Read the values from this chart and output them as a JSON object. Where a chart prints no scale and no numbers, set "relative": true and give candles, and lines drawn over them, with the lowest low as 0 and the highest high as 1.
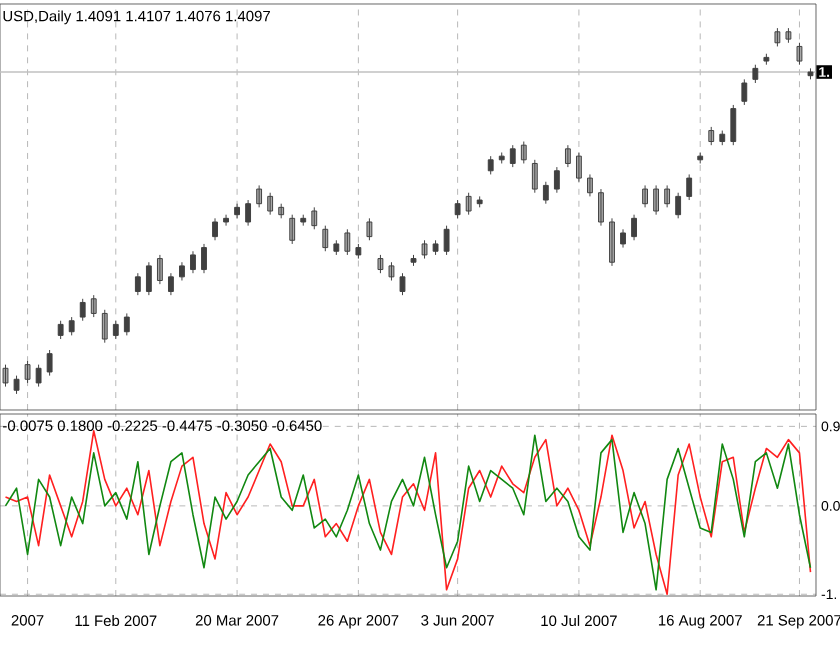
{
  "chart_data": [
    {
      "type": "candlestick",
      "title": "USD,Daily 1.4091 1.4107 1.4076 1.4097",
      "relative": true,
      "color": "#404040",
      "grid": "x",
      "categories": [
        null,
        null,
        null,
        null,
        null,
        null,
        null,
        null,
        null,
        null,
        null,
        null,
        null,
        null,
        null,
        null,
        null,
        null,
        null,
        null,
        null,
        null,
        null,
        null,
        null,
        null,
        null,
        null,
        null,
        null,
        null,
        null,
        null,
        null,
        null,
        null,
        null,
        null,
        null,
        null,
        null,
        null,
        null,
        null,
        null,
        null,
        null,
        null,
        null,
        null,
        null,
        null,
        null,
        null,
        null,
        null,
        null,
        null,
        null,
        null,
        null,
        null,
        null,
        null,
        null,
        null,
        null,
        null,
        null,
        null,
        null,
        null,
        null,
        null
      ],
      "ohlc": [
        [
          0.07,
          0.08,
          0.02,
          0.03
        ],
        [
          0.01,
          0.05,
          0,
          0.04
        ],
        [
          0.08,
          0.09,
          0.03,
          0.04
        ],
        [
          0.03,
          0.08,
          0.02,
          0.07
        ],
        [
          0.06,
          0.12,
          0.05,
          0.11
        ],
        [
          0.16,
          0.2,
          0.15,
          0.19
        ],
        [
          0.17,
          0.21,
          0.16,
          0.2
        ],
        [
          0.21,
          0.26,
          0.2,
          0.25
        ],
        [
          0.26,
          0.27,
          0.21,
          0.22
        ],
        [
          0.22,
          0.23,
          0.14,
          0.15
        ],
        [
          0.16,
          0.2,
          0.15,
          0.19
        ],
        [
          0.17,
          0.22,
          0.16,
          0.21
        ],
        [
          0.28,
          0.33,
          0.27,
          0.32
        ],
        [
          0.28,
          0.36,
          0.27,
          0.35
        ],
        [
          0.37,
          0.38,
          0.3,
          0.31
        ],
        [
          0.28,
          0.33,
          0.27,
          0.32
        ],
        [
          0.32,
          0.36,
          0.31,
          0.35
        ],
        [
          0.34,
          0.39,
          0.33,
          0.38
        ],
        [
          0.34,
          0.41,
          0.33,
          0.4
        ],
        [
          0.43,
          0.48,
          0.42,
          0.47
        ],
        [
          0.47,
          0.49,
          0.46,
          0.48
        ],
        [
          0.49,
          0.52,
          0.48,
          0.51
        ],
        [
          0.47,
          0.53,
          0.46,
          0.52
        ],
        [
          0.56,
          0.57,
          0.51,
          0.52
        ],
        [
          0.54,
          0.55,
          0.49,
          0.5
        ],
        [
          0.51,
          0.52,
          0.48,
          0.49
        ],
        [
          0.48,
          0.49,
          0.41,
          0.42
        ],
        [
          0.47,
          0.49,
          0.46,
          0.48
        ],
        [
          0.5,
          0.51,
          0.45,
          0.46
        ],
        [
          0.45,
          0.46,
          0.39,
          0.4
        ],
        [
          0.39,
          0.42,
          0.38,
          0.41
        ],
        [
          0.44,
          0.45,
          0.38,
          0.39
        ],
        [
          0.38,
          0.41,
          0.37,
          0.4
        ],
        [
          0.47,
          0.48,
          0.42,
          0.43
        ],
        [
          0.37,
          0.38,
          0.33,
          0.34
        ],
        [
          0.35,
          0.36,
          0.31,
          0.32
        ],
        [
          0.28,
          0.33,
          0.27,
          0.32
        ],
        [
          0.36,
          0.38,
          0.35,
          0.37
        ],
        [
          0.41,
          0.42,
          0.37,
          0.38
        ],
        [
          0.39,
          0.42,
          0.38,
          0.41
        ],
        [
          0.39,
          0.46,
          0.38,
          0.45
        ],
        [
          0.49,
          0.53,
          0.48,
          0.52
        ],
        [
          0.54,
          0.55,
          0.49,
          0.5
        ],
        [
          0.52,
          0.54,
          0.51,
          0.53
        ],
        [
          0.61,
          0.65,
          0.6,
          0.64
        ],
        [
          0.64,
          0.66,
          0.63,
          0.65
        ],
        [
          0.63,
          0.68,
          0.62,
          0.67
        ],
        [
          0.68,
          0.69,
          0.63,
          0.64
        ],
        [
          0.63,
          0.64,
          0.55,
          0.56
        ],
        [
          0.53,
          0.58,
          0.52,
          0.57
        ],
        [
          0.56,
          0.62,
          0.55,
          0.61
        ],
        [
          0.67,
          0.68,
          0.62,
          0.63
        ],
        [
          0.65,
          0.66,
          0.58,
          0.59
        ],
        [
          0.59,
          0.6,
          0.54,
          0.55
        ],
        [
          0.55,
          0.56,
          0.46,
          0.47
        ],
        [
          0.47,
          0.48,
          0.35,
          0.36
        ],
        [
          0.41,
          0.45,
          0.4,
          0.44
        ],
        [
          0.43,
          0.49,
          0.42,
          0.48
        ],
        [
          0.56,
          0.57,
          0.51,
          0.52
        ],
        [
          0.56,
          0.57,
          0.49,
          0.5
        ],
        [
          0.56,
          0.57,
          0.51,
          0.52
        ],
        [
          0.49,
          0.55,
          0.48,
          0.54
        ],
        [
          0.54,
          0.6,
          0.53,
          0.59
        ],
        [
          0.64,
          0.66,
          0.63,
          0.65
        ],
        [
          0.72,
          0.73,
          0.68,
          0.69
        ],
        [
          0.69,
          0.72,
          0.68,
          0.71
        ],
        [
          0.69,
          0.79,
          0.68,
          0.78
        ],
        [
          0.8,
          0.86,
          0.79,
          0.85
        ],
        [
          0.86,
          0.9,
          0.85,
          0.89
        ],
        [
          0.91,
          0.93,
          0.9,
          0.92
        ],
        [
          0.99,
          1.0,
          0.95,
          0.96
        ],
        [
          0.99,
          1.0,
          0.96,
          0.97
        ],
        [
          0.95,
          0.96,
          0.9,
          0.91
        ],
        [
          0.87,
          0.89,
          0.86,
          0.88
        ]
      ],
      "ref_lines": [
        {
          "axis": "y",
          "value": 0.88,
          "label": "1.",
          "color": "#c0c0c0"
        }
      ]
    },
    {
      "type": "line",
      "title": "-0.0075 0.1800 -0.2225 -0.4475 -0.3050 -0.6450",
      "grid": true,
      "categories": [
        null,
        null,
        "2007",
        null,
        null,
        null,
        null,
        null,
        null,
        null,
        "11 Feb 2007",
        null,
        null,
        null,
        null,
        null,
        null,
        null,
        null,
        null,
        null,
        "20 Mar 2007",
        null,
        null,
        null,
        null,
        null,
        null,
        null,
        null,
        null,
        null,
        "26 Apr 2007",
        null,
        null,
        null,
        null,
        null,
        null,
        null,
        null,
        "3 Jun 2007",
        null,
        null,
        null,
        null,
        null,
        null,
        null,
        null,
        null,
        null,
        "10 Jul 2007",
        null,
        null,
        null,
        null,
        null,
        null,
        null,
        null,
        null,
        null,
        "16 Aug 2007",
        null,
        null,
        null,
        null,
        null,
        null,
        null,
        null,
        "21 Sep 2007",
        null
      ],
      "ylim": [
        -1.02,
        1.04
      ],
      "yticks": [
        {
          "value": 0.9,
          "label": "0.9"
        },
        {
          "value": 0,
          "label": "0.0"
        },
        {
          "value": -1,
          "label": "-1."
        }
      ],
      "series": [
        {
          "color": "#ff2020",
          "values": [
            0.1,
            0.05,
            0.1,
            -0.45,
            0.35,
            0.0,
            -0.35,
            0.05,
            0.85,
            0.3,
            0.0,
            0.2,
            -0.1,
            0.4,
            -0.45,
            0.05,
            0.45,
            0.55,
            -0.2,
            -0.6,
            0.15,
            -0.1,
            0.1,
            0.4,
            0.7,
            0.5,
            0.0,
            0.0,
            0.3,
            -0.35,
            -0.2,
            -0.4,
            0.0,
            0.3,
            -0.3,
            -0.55,
            0.1,
            0.25,
            -0.05,
            0.6,
            -0.95,
            -0.6,
            0.2,
            0.4,
            0.1,
            0.45,
            0.25,
            0.15,
            0.55,
            0.75,
            0.0,
            0.2,
            -0.05,
            -0.45,
            0.1,
            0.8,
            0.4,
            -0.25,
            0.05,
            -0.55,
            -1.0,
            0.35,
            0.7,
            0.1,
            -0.35,
            0.5,
            0.55,
            -0.3,
            0.2,
            0.65,
            0.55,
            0.75,
            0.6,
            -0.75
          ]
        },
        {
          "color": "#118811",
          "values": [
            0.0,
            0.2,
            -0.55,
            0.3,
            0.1,
            -0.45,
            0.1,
            -0.2,
            0.6,
            0.0,
            0.15,
            -0.15,
            0.5,
            -0.55,
            0.0,
            0.5,
            0.6,
            -0.1,
            -0.7,
            0.1,
            -0.15,
            0.05,
            0.35,
            0.5,
            0.65,
            0.1,
            -0.05,
            0.35,
            -0.25,
            -0.15,
            -0.35,
            -0.05,
            0.35,
            -0.2,
            -0.5,
            0.05,
            0.3,
            0.0,
            0.55,
            -0.1,
            -0.7,
            -0.4,
            0.45,
            0.05,
            0.4,
            0.3,
            0.2,
            -0.1,
            0.8,
            0.05,
            0.2,
            0.05,
            -0.35,
            -0.5,
            0.6,
            0.75,
            -0.3,
            0.15,
            -0.2,
            -0.95,
            0.3,
            0.65,
            0.2,
            -0.25,
            -0.3,
            0.7,
            0.3,
            -0.35,
            0.5,
            0.6,
            0.2,
            0.7,
            -0.1,
            -0.7
          ]
        }
      ]
    }
  ]
}
